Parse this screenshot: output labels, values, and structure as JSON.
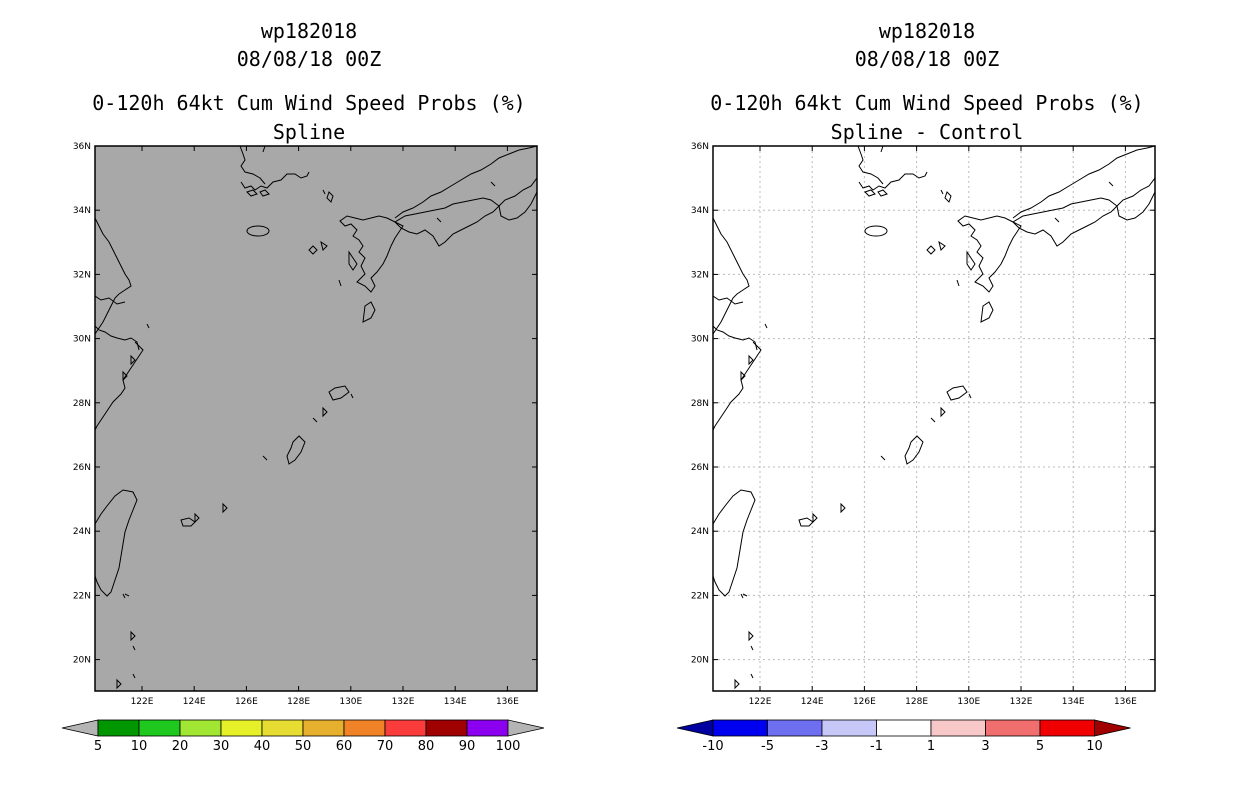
{
  "left_panel": {
    "storm_id": "wp182018",
    "datetime": "08/08/18 00Z",
    "product": "0-120h 64kt Cum Wind Speed Probs (%)",
    "subtitle": "Spline",
    "background_color": "#a8a8a8"
  },
  "right_panel": {
    "storm_id": "wp182018",
    "datetime": "08/08/18 00Z",
    "product": "0-120h 64kt Cum Wind Speed Probs (%)",
    "subtitle": "Spline - Control",
    "background_color": "#ffffff"
  },
  "lat_labels": [
    "36N",
    "34N",
    "32N",
    "30N",
    "28N",
    "26N",
    "24N",
    "22N",
    "20N"
  ],
  "lon_labels": [
    "122E",
    "124E",
    "126E",
    "128E",
    "130E",
    "132E",
    "134E",
    "136E"
  ],
  "left_colorbar": {
    "labels": [
      "5",
      "10",
      "20",
      "30",
      "40",
      "50",
      "60",
      "70",
      "80",
      "90",
      "100"
    ],
    "colors": [
      "#b4b4b4",
      "#009600",
      "#1ec81e",
      "#a0e632",
      "#e6f028",
      "#e6dc32",
      "#e6af2d",
      "#f08228",
      "#fa3c3c",
      "#a00000",
      "#8c00f0",
      "#b4b4b4"
    ]
  },
  "right_colorbar": {
    "labels": [
      "-10",
      "-5",
      "-3",
      "-1",
      "1",
      "3",
      "5",
      "10"
    ],
    "colors": [
      "#0000a0",
      "#0000f0",
      "#6e6ef0",
      "#c8c8f8",
      "#ffffff",
      "#f8c8c8",
      "#f06e6e",
      "#f00000",
      "#a00000"
    ]
  }
}
